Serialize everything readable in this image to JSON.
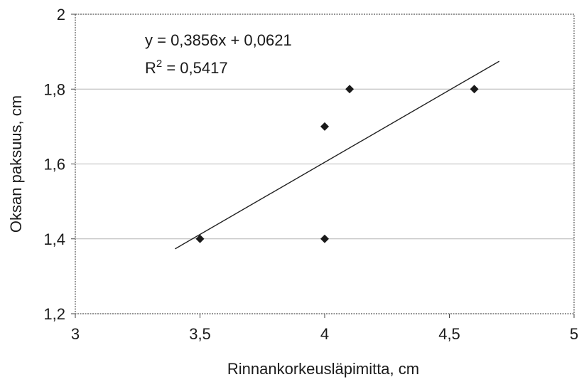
{
  "chart_data": {
    "type": "scatter",
    "xlabel": "Rinnankorkeusläpimitta, cm",
    "ylabel": "Oksan paksuus, cm",
    "xlim": [
      3,
      5
    ],
    "ylim": [
      1.2,
      2
    ],
    "x_ticks": [
      "3",
      "3,5",
      "4",
      "4,5",
      "5"
    ],
    "y_ticks": [
      "1,2",
      "1,4",
      "1,6",
      "1,8",
      "2"
    ],
    "grid": "horizontal",
    "points": [
      {
        "x": 3.5,
        "y": 1.4
      },
      {
        "x": 4.0,
        "y": 1.7
      },
      {
        "x": 4.0,
        "y": 1.4
      },
      {
        "x": 4.1,
        "y": 1.8
      },
      {
        "x": 4.6,
        "y": 1.8
      }
    ],
    "trendline": {
      "type": "linear",
      "slope": 0.3856,
      "intercept": 0.0621,
      "x_range": [
        3.4,
        4.7
      ]
    },
    "equation_label": "y = 0,3856x + 0,0621",
    "r2_prefix": "R",
    "r2_exponent": "2",
    "r2_value": " = 0,5417",
    "colors": {
      "marker": "#1a1a1a",
      "trendline": "#222222",
      "grid": "#b5b5b5"
    }
  }
}
